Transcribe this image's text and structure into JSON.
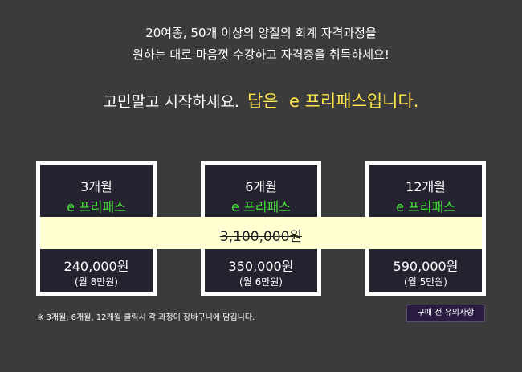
{
  "intro": {
    "line1": "20여종, 50개 이상의 양질의 회계 자격과정을",
    "line2": "원하는 대로 마음껏 수강하고 자격증을 취득하세요!"
  },
  "headline": {
    "text": "고민말고 시작하세요.",
    "accent": "답은  e 프리패스입니다."
  },
  "band": {
    "original_price": "3,100,000원"
  },
  "plans": [
    {
      "period": "3개월",
      "name": "e 프리패스",
      "price": "240,000원",
      "monthly": "(월 8만원)"
    },
    {
      "period": "6개월",
      "name": "e 프리패스",
      "price": "350,000원",
      "monthly": "(월 6만원)"
    },
    {
      "period": "12개월",
      "name": "e 프리패스",
      "price": "590,000원",
      "monthly": "(월 5만원)"
    }
  ],
  "footnote": "※ 3개월, 6개월, 12개월 클릭시 각 과정이 장바구니에 담깁니다.",
  "notice_button": "구매 전 유의사항",
  "colors": {
    "background": "#3b3b3b",
    "accent_yellow": "#ffe54a",
    "plan_green": "#47e23a",
    "card_dark": "#24232f",
    "band": "#ffffd2"
  }
}
